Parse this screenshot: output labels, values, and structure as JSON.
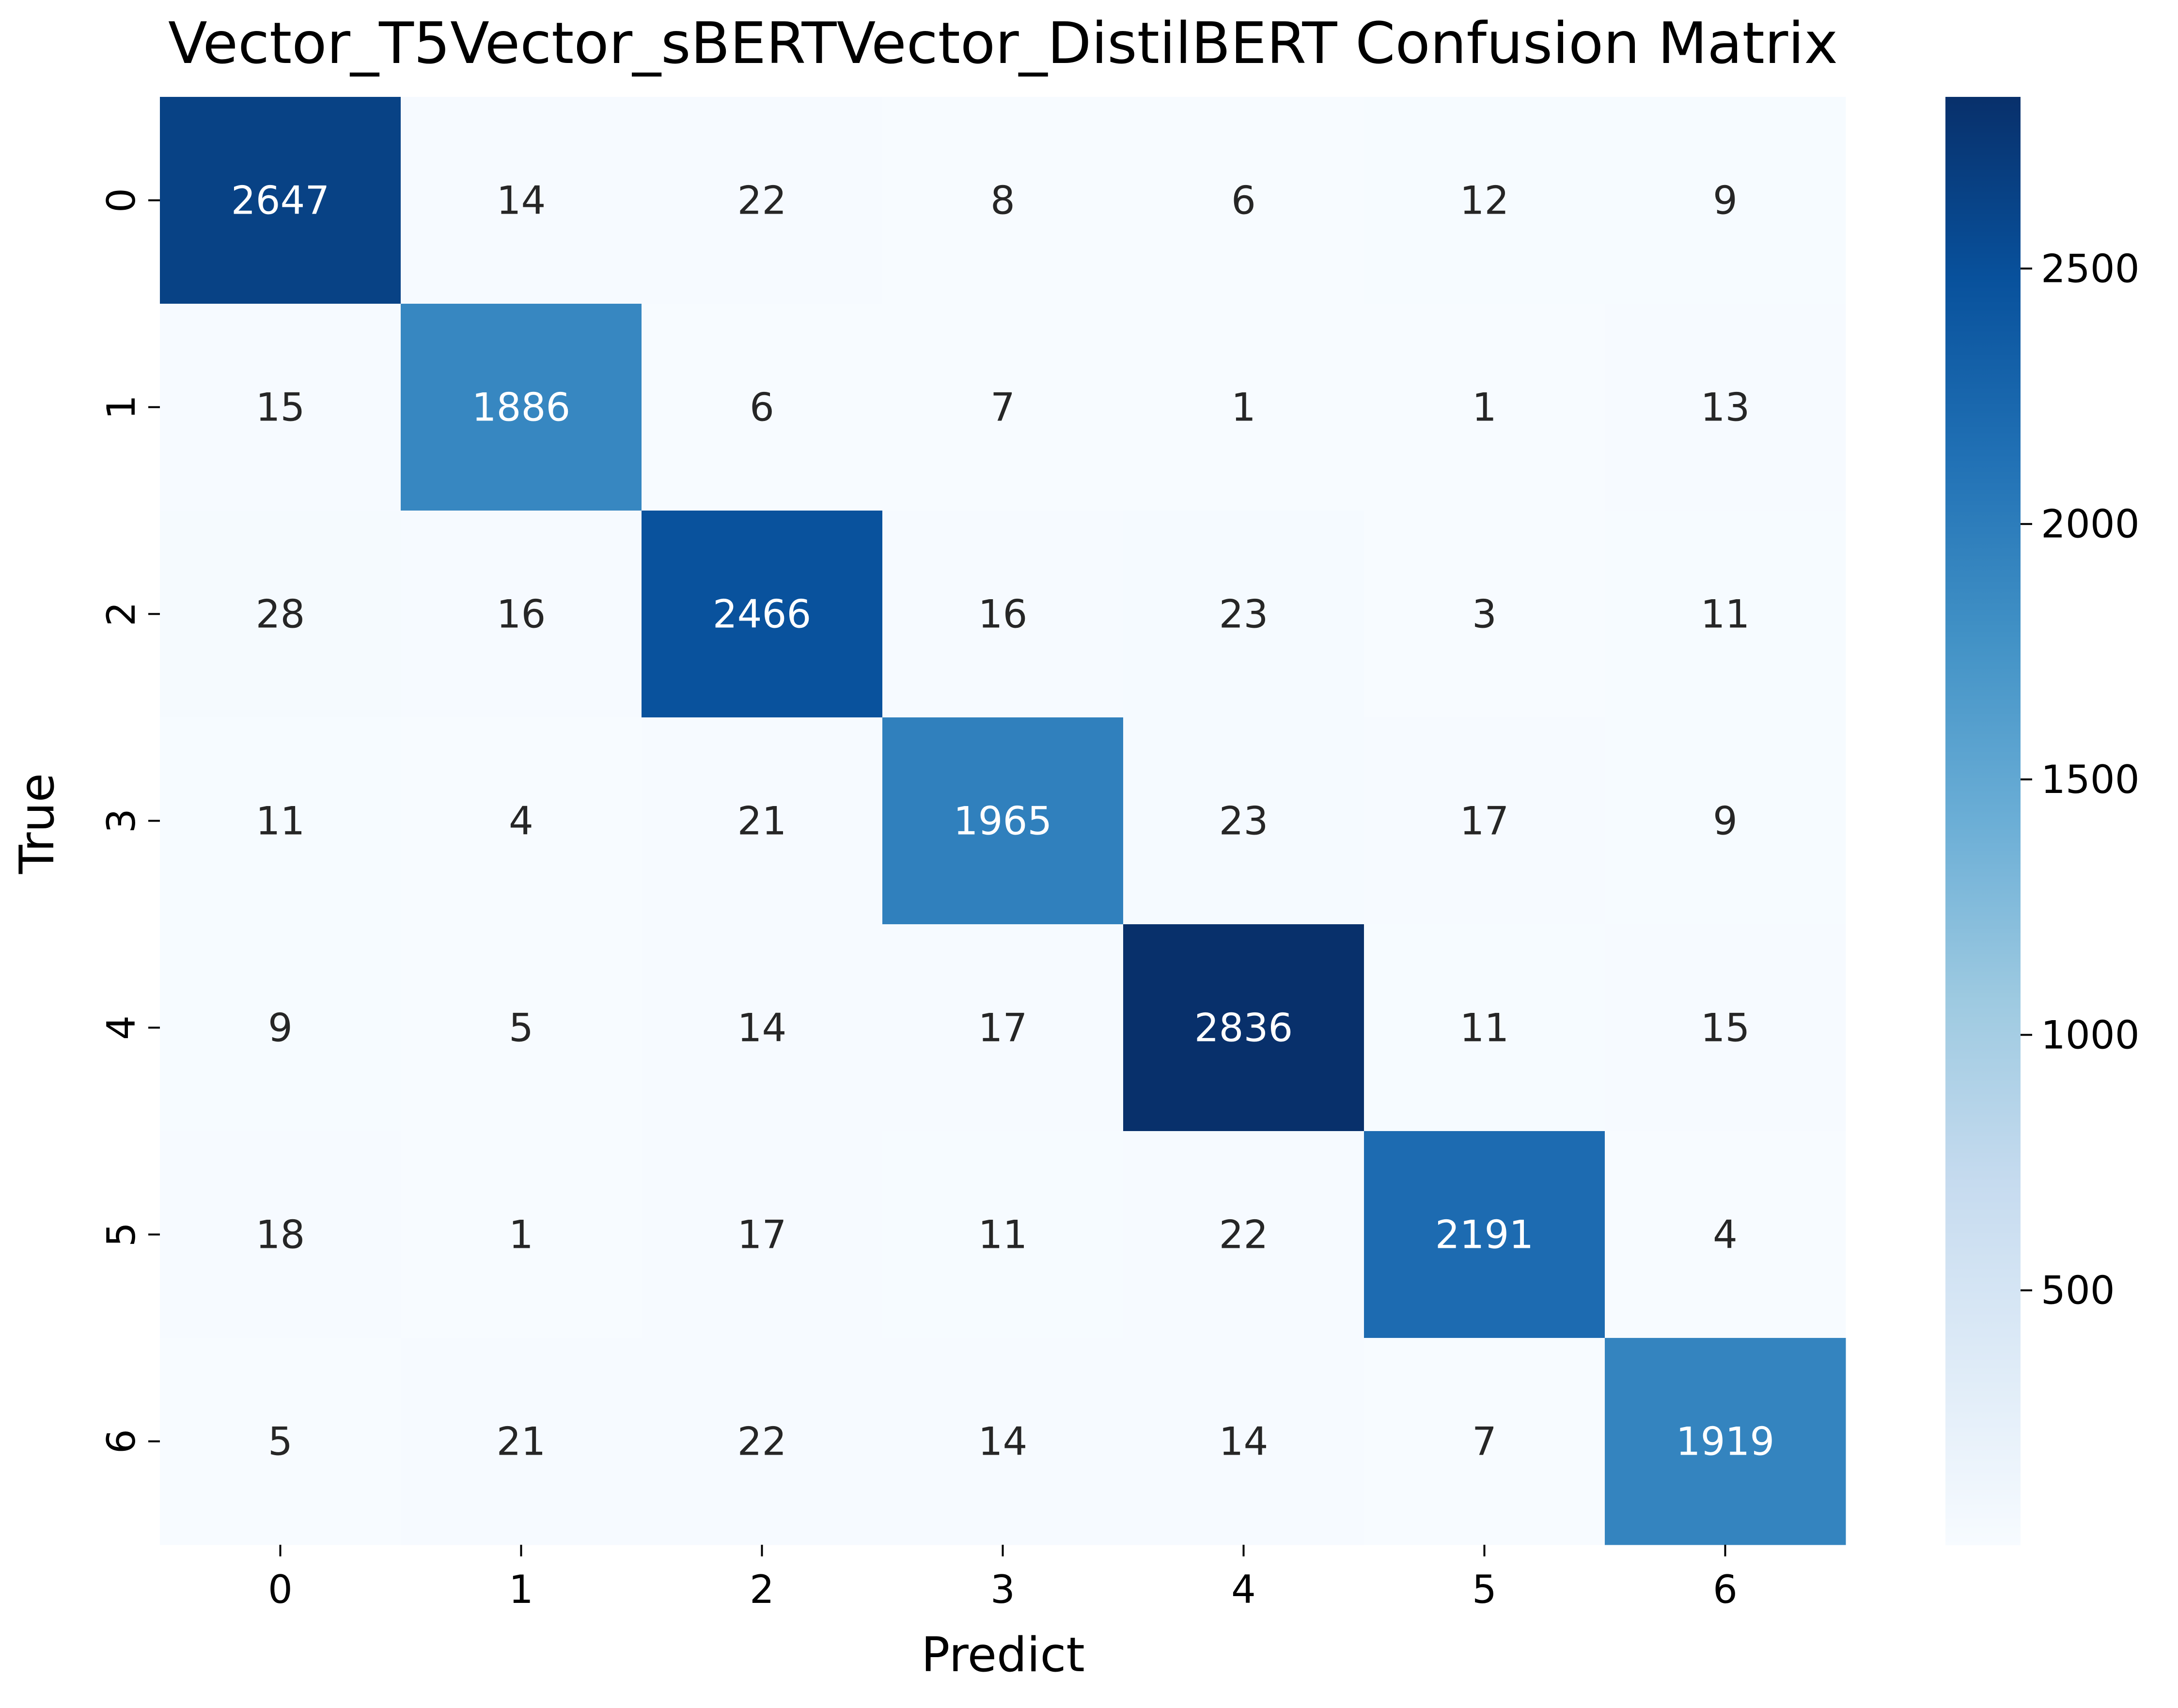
{
  "chart_data": {
    "type": "heatmap",
    "title": "Vector_T5Vector_sBERTVector_DistilBERT Confusion Matrix",
    "xlabel": "Predict",
    "ylabel": "True",
    "x_tick_labels": [
      "0",
      "1",
      "2",
      "3",
      "4",
      "5",
      "6"
    ],
    "y_tick_labels": [
      "0",
      "1",
      "2",
      "3",
      "4",
      "5",
      "6"
    ],
    "matrix": [
      [
        2647,
        14,
        22,
        8,
        6,
        12,
        9
      ],
      [
        15,
        1886,
        6,
        7,
        1,
        1,
        13
      ],
      [
        28,
        16,
        2466,
        16,
        23,
        3,
        11
      ],
      [
        11,
        4,
        21,
        1965,
        23,
        17,
        9
      ],
      [
        9,
        5,
        14,
        17,
        2836,
        11,
        15
      ],
      [
        18,
        1,
        17,
        11,
        22,
        2191,
        4
      ],
      [
        5,
        21,
        22,
        14,
        14,
        7,
        1919
      ]
    ],
    "colormap": "Blues",
    "colorbar": {
      "vmin": 1,
      "vmax": 2836,
      "ticks": [
        500,
        1000,
        1500,
        2000,
        2500
      ],
      "tick_labels": [
        "500",
        "1000",
        "1500",
        "2000",
        "2500"
      ]
    },
    "annotation_colors": {
      "light": "#ffffff",
      "dark": "#262626"
    },
    "grid": false
  }
}
